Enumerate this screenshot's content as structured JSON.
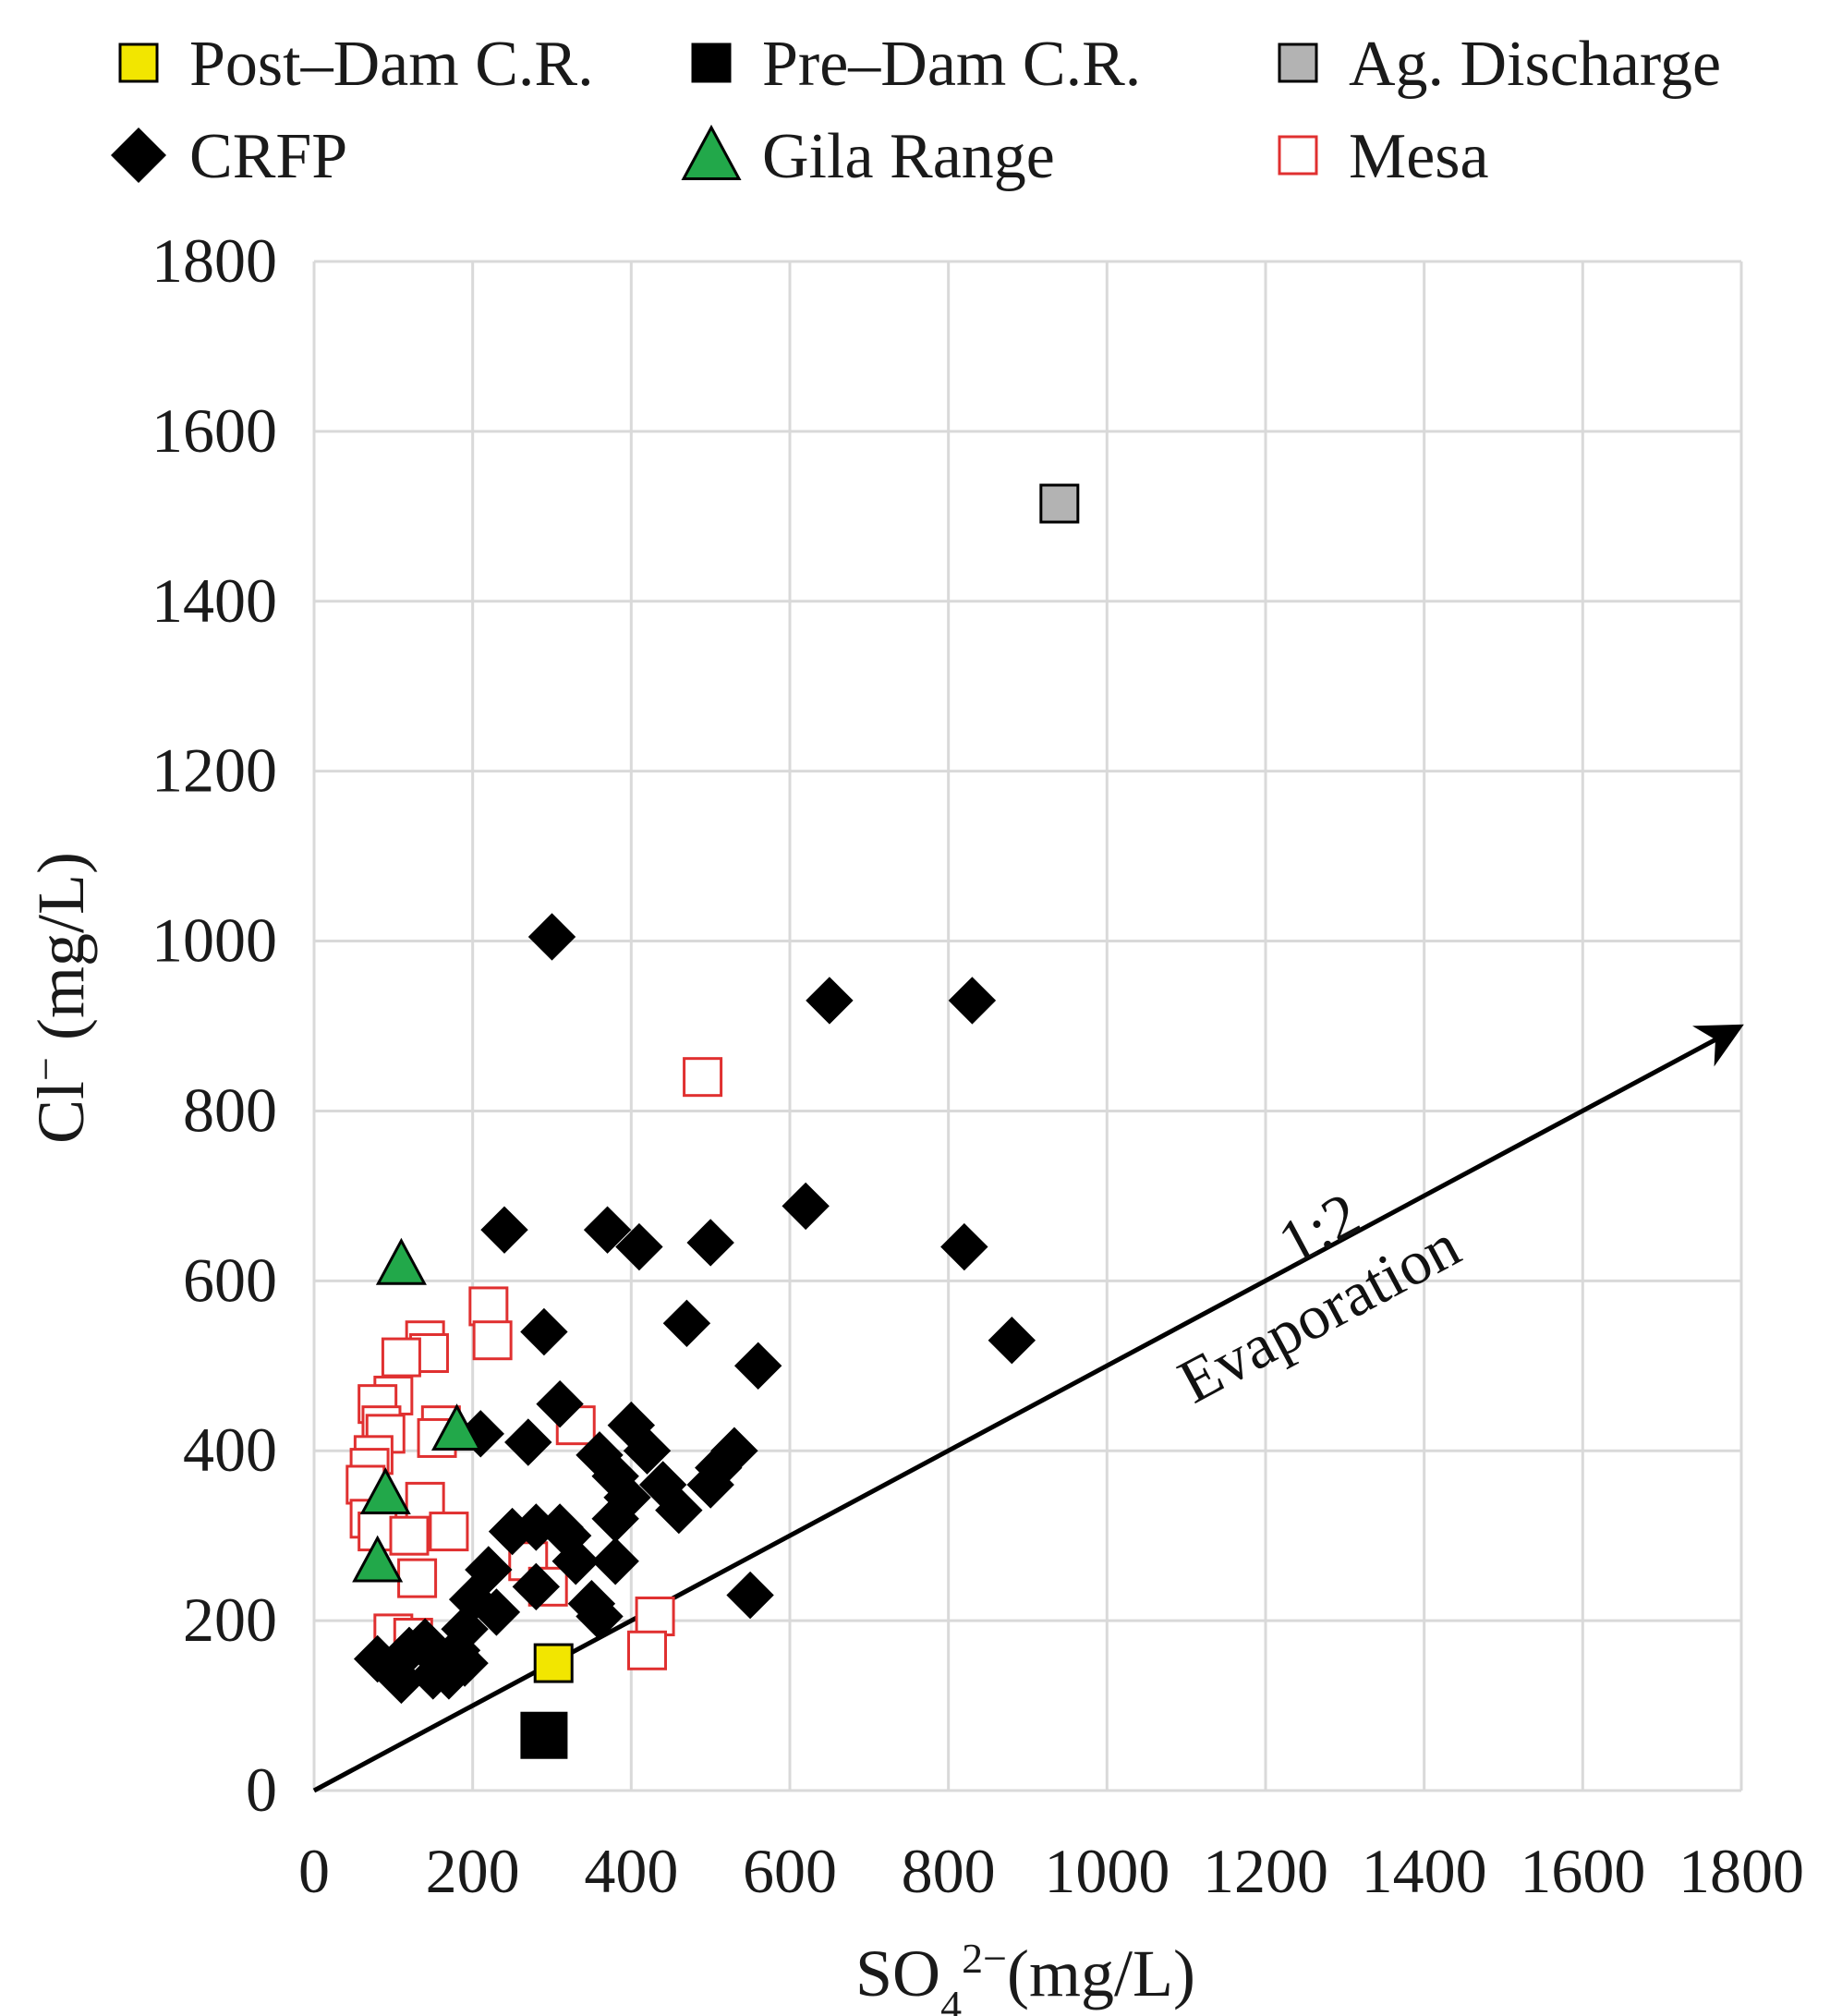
{
  "chart_data": {
    "type": "scatter",
    "title": "",
    "xlabel": {
      "base": "SO",
      "sub": "4",
      "sup": "2−",
      "unit": "(mg/L)"
    },
    "ylabel": {
      "base": "Cl",
      "sup": "−",
      "unit": " (mg/L)"
    },
    "xlim": [
      0,
      1800
    ],
    "ylim": [
      0,
      1800
    ],
    "xticks": [
      "0",
      "200",
      "400",
      "600",
      "800",
      "1000",
      "1200",
      "1400",
      "1600",
      "1800"
    ],
    "yticks": [
      "0",
      "200",
      "400",
      "600",
      "800",
      "1000",
      "1200",
      "1400",
      "1600",
      "1800"
    ],
    "grid": true,
    "legend_position": "top",
    "colors": {
      "post_dam": "#f2e600",
      "pre_dam": "#000000",
      "ag_discharge": "#b3b3b3",
      "crfp": "#000000",
      "gila": "#22a84a",
      "mesa": "#e03030",
      "grid": "#d9d9d9"
    },
    "series": [
      {
        "name": "Post–Dam C.R.",
        "marker": "square-filled",
        "color_key": "post_dam",
        "points": [
          [
            302,
            150
          ]
        ]
      },
      {
        "name": "Pre–Dam C.R.",
        "marker": "square-filled-large",
        "color_key": "pre_dam",
        "points": [
          [
            290,
            65
          ]
        ]
      },
      {
        "name": "Ag. Discharge",
        "marker": "square-filled",
        "color_key": "ag_discharge",
        "points": [
          [
            940,
            1515
          ]
        ]
      },
      {
        "name": "CRFP",
        "marker": "diamond",
        "color_key": "crfp",
        "points": [
          [
            300,
            1005
          ],
          [
            650,
            930
          ],
          [
            830,
            930
          ],
          [
            620,
            688
          ],
          [
            820,
            640
          ],
          [
            880,
            530
          ],
          [
            240,
            660
          ],
          [
            370,
            660
          ],
          [
            410,
            640
          ],
          [
            500,
            645
          ],
          [
            470,
            550
          ],
          [
            560,
            500
          ],
          [
            290,
            540
          ],
          [
            310,
            455
          ],
          [
            210,
            420
          ],
          [
            270,
            410
          ],
          [
            400,
            430
          ],
          [
            360,
            395
          ],
          [
            420,
            400
          ],
          [
            510,
            380
          ],
          [
            530,
            400
          ],
          [
            380,
            370
          ],
          [
            395,
            345
          ],
          [
            440,
            360
          ],
          [
            460,
            330
          ],
          [
            500,
            360
          ],
          [
            380,
            320
          ],
          [
            250,
            305
          ],
          [
            280,
            310
          ],
          [
            310,
            310
          ],
          [
            330,
            270
          ],
          [
            380,
            270
          ],
          [
            350,
            220
          ],
          [
            360,
            205
          ],
          [
            550,
            230
          ],
          [
            220,
            260
          ],
          [
            200,
            225
          ],
          [
            230,
            210
          ],
          [
            190,
            190
          ],
          [
            180,
            165
          ],
          [
            160,
            150
          ],
          [
            190,
            150
          ],
          [
            170,
            135
          ],
          [
            150,
            135
          ],
          [
            110,
            130
          ],
          [
            80,
            155
          ],
          [
            120,
            165
          ],
          [
            140,
            175
          ],
          [
            280,
            240
          ],
          [
            320,
            300
          ]
        ]
      },
      {
        "name": "Gila Range",
        "marker": "triangle",
        "color_key": "gila",
        "points": [
          [
            110,
            620
          ],
          [
            180,
            425
          ],
          [
            90,
            350
          ],
          [
            80,
            270
          ]
        ]
      },
      {
        "name": "Mesa",
        "marker": "square-open",
        "color_key": "mesa",
        "points": [
          [
            490,
            840
          ],
          [
            220,
            570
          ],
          [
            225,
            530
          ],
          [
            140,
            530
          ],
          [
            145,
            515
          ],
          [
            110,
            510
          ],
          [
            100,
            465
          ],
          [
            80,
            455
          ],
          [
            85,
            430
          ],
          [
            90,
            420
          ],
          [
            75,
            395
          ],
          [
            70,
            380
          ],
          [
            65,
            360
          ],
          [
            160,
            430
          ],
          [
            155,
            415
          ],
          [
            330,
            430
          ],
          [
            140,
            340
          ],
          [
            170,
            305
          ],
          [
            70,
            320
          ],
          [
            80,
            305
          ],
          [
            120,
            300
          ],
          [
            130,
            250
          ],
          [
            270,
            270
          ],
          [
            295,
            240
          ],
          [
            100,
            185
          ],
          [
            125,
            180
          ],
          [
            430,
            205
          ],
          [
            420,
            165
          ]
        ]
      }
    ],
    "legend": [
      {
        "label": "Post–Dam C.R.",
        "marker": "square-filled",
        "color_key": "post_dam"
      },
      {
        "label": "Pre–Dam C.R.",
        "marker": "square-filled",
        "color_key": "pre_dam"
      },
      {
        "label": "Ag. Discharge",
        "marker": "square-filled",
        "color_key": "ag_discharge"
      },
      {
        "label": "CRFP",
        "marker": "diamond",
        "color_key": "crfp"
      },
      {
        "label": "Gila Range",
        "marker": "triangle",
        "color_key": "gila"
      },
      {
        "label": "Mesa",
        "marker": "square-open",
        "color_key": "mesa"
      }
    ],
    "annotations": [
      {
        "type": "arrow",
        "label": "evaporation-arrow",
        "from": [
          0,
          0
        ],
        "to": [
          1800,
          900
        ]
      },
      {
        "type": "text",
        "text": "1:2",
        "anchor": [
          1280,
          640
        ]
      },
      {
        "type": "text",
        "text": "Evaporation",
        "anchor": [
          1280,
          540
        ]
      }
    ]
  }
}
